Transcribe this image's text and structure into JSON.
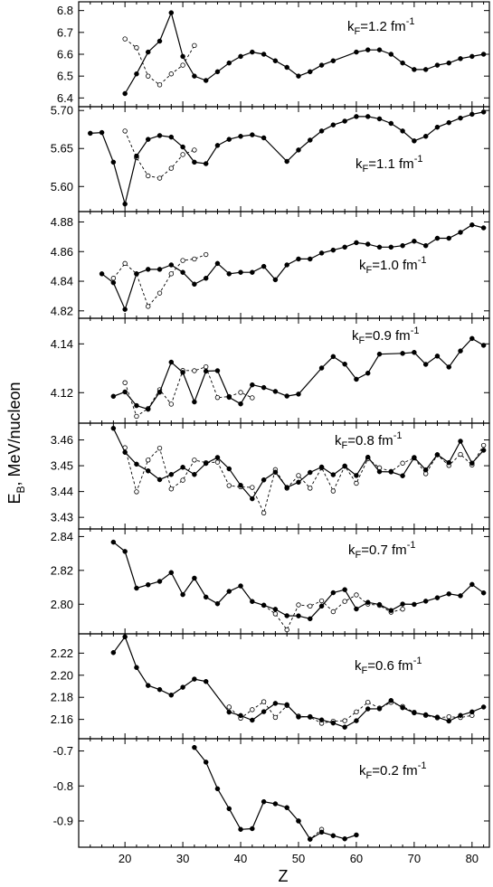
{
  "figure": {
    "ylabel_main": "E",
    "ylabel_sub": "B",
    "ylabel_rest": ", MeV/nucleon",
    "xlabel": "Z"
  },
  "chart_data": [
    {
      "type": "line",
      "label_pre": "k",
      "label_sub": "F",
      "label_mid": "=1.2 fm",
      "label_sup": "-1",
      "xlim": [
        12,
        83
      ],
      "ylim": [
        6.36,
        6.84
      ],
      "yticks": [
        "6.4",
        "6.5",
        "6.6",
        "6.7",
        "6.8"
      ],
      "xticks": [],
      "series": [
        {
          "style": "solid-filled",
          "x": [
            20,
            22,
            24,
            26,
            28,
            30,
            32,
            34,
            36,
            38,
            40,
            42,
            44,
            46,
            48,
            50,
            52,
            54,
            56,
            60,
            62,
            64,
            66,
            68,
            70,
            72,
            74,
            76,
            78,
            80,
            82
          ],
          "y": [
            6.42,
            6.51,
            6.61,
            6.66,
            6.79,
            6.59,
            6.5,
            6.48,
            6.52,
            6.56,
            6.59,
            6.61,
            6.6,
            6.57,
            6.54,
            6.5,
            6.52,
            6.55,
            6.57,
            6.61,
            6.62,
            6.62,
            6.6,
            6.56,
            6.53,
            6.53,
            6.55,
            6.56,
            6.58,
            6.59,
            6.6
          ]
        },
        {
          "style": "dashed-open",
          "x": [
            20,
            22,
            24,
            26,
            28,
            30,
            32
          ],
          "y": [
            6.67,
            6.63,
            6.5,
            6.46,
            6.51,
            6.55,
            6.64
          ]
        }
      ]
    },
    {
      "type": "line",
      "label_pre": "k",
      "label_sub": "F",
      "label_mid": "=1.1 fm",
      "label_sup": "-1",
      "xlim": [
        12,
        83
      ],
      "ylim": [
        5.567,
        5.705
      ],
      "yticks": [
        "5.60",
        "5.65",
        "5.70"
      ],
      "xticks": [],
      "series": [
        {
          "style": "solid-filled",
          "x": [
            14,
            16,
            18,
            20,
            22,
            24,
            26,
            28,
            30,
            32,
            34,
            36,
            38,
            40,
            42,
            44,
            48,
            50,
            52,
            54,
            56,
            58,
            60,
            62,
            64,
            66,
            68,
            70,
            72,
            74,
            76,
            78,
            80,
            82
          ],
          "y": [
            5.67,
            5.671,
            5.632,
            5.577,
            5.64,
            5.662,
            5.667,
            5.665,
            5.652,
            5.632,
            5.63,
            5.654,
            5.662,
            5.666,
            5.668,
            5.664,
            5.633,
            5.648,
            5.661,
            5.673,
            5.681,
            5.686,
            5.692,
            5.692,
            5.689,
            5.683,
            5.673,
            5.66,
            5.666,
            5.678,
            5.684,
            5.69,
            5.695,
            5.698
          ]
        },
        {
          "style": "dashed-open",
          "x": [
            20,
            22,
            24,
            26,
            28,
            30,
            32
          ],
          "y": [
            5.673,
            5.638,
            5.614,
            5.611,
            5.624,
            5.642,
            5.648
          ]
        }
      ]
    },
    {
      "type": "line",
      "label_pre": "k",
      "label_sub": "F",
      "label_mid": "=1.0 fm",
      "label_sup": "-1",
      "xlim": [
        12,
        83
      ],
      "ylim": [
        4.815,
        4.887
      ],
      "yticks": [
        "4.82",
        "4.84",
        "4.86",
        "4.88"
      ],
      "xticks": [],
      "series": [
        {
          "style": "solid-filled",
          "x": [
            16,
            18,
            20,
            22,
            24,
            26,
            28,
            30,
            32,
            34,
            36,
            38,
            40,
            42,
            44,
            46,
            48,
            50,
            52,
            54,
            56,
            58,
            60,
            62,
            64,
            66,
            68,
            70,
            72,
            74,
            76,
            78,
            80,
            82
          ],
          "y": [
            4.845,
            4.839,
            4.821,
            4.845,
            4.848,
            4.848,
            4.851,
            4.846,
            4.838,
            4.842,
            4.852,
            4.845,
            4.846,
            4.846,
            4.85,
            4.841,
            4.851,
            4.855,
            4.855,
            4.859,
            4.861,
            4.863,
            4.866,
            4.865,
            4.863,
            4.863,
            4.864,
            4.867,
            4.864,
            4.869,
            4.869,
            4.873,
            4.878,
            4.876
          ]
        },
        {
          "style": "dashed-open",
          "x": [
            18,
            20,
            22,
            24,
            26,
            28,
            30,
            32,
            34
          ],
          "y": [
            4.842,
            4.852,
            4.845,
            4.823,
            4.832,
            4.845,
            4.854,
            4.855,
            4.858
          ]
        }
      ]
    },
    {
      "type": "line",
      "label_pre": "k",
      "label_sub": "F",
      "label_mid": "=0.9 fm",
      "label_sup": "-1",
      "xlim": [
        12,
        83
      ],
      "ylim": [
        4.1075,
        4.1505
      ],
      "yticks": [
        "4.12",
        "4.14"
      ],
      "xticks": [],
      "series": [
        {
          "style": "solid-filled",
          "x": [
            18,
            20,
            22,
            24,
            26,
            28,
            30,
            32,
            34,
            36,
            38,
            40,
            42,
            44,
            46,
            48,
            50,
            54,
            56,
            58,
            60,
            62,
            64,
            68,
            70,
            72,
            74,
            76,
            78,
            80,
            82
          ],
          "y": [
            4.1185,
            4.1203,
            4.1147,
            4.1132,
            4.1202,
            4.1325,
            4.1283,
            4.1162,
            4.1288,
            4.129,
            4.1181,
            4.1154,
            4.1232,
            4.1221,
            4.1205,
            4.1186,
            4.1194,
            4.1301,
            4.1348,
            4.1317,
            4.1255,
            4.128,
            4.1358,
            4.1361,
            4.1365,
            4.1316,
            4.135,
            4.1305,
            4.1371,
            4.1422,
            4.1394
          ]
        },
        {
          "style": "dashed-open",
          "x": [
            20,
            22,
            24,
            26,
            28,
            30,
            32,
            34,
            36,
            38,
            40,
            42
          ],
          "y": [
            4.1241,
            4.1103,
            4.1135,
            4.1212,
            4.1153,
            4.1291,
            4.129,
            4.1306,
            4.118,
            4.1184,
            4.1201,
            4.1179
          ]
        }
      ]
    },
    {
      "type": "line",
      "label_pre": "k",
      "label_sub": "F",
      "label_mid": "=0.8 fm",
      "label_sup": "-1",
      "xlim": [
        12,
        83
      ],
      "ylim": [
        3.4255,
        3.4665
      ],
      "yticks": [
        "3.43",
        "3.44",
        "3.45",
        "3.46"
      ],
      "xticks": [],
      "series": [
        {
          "style": "solid-filled",
          "x": [
            18,
            20,
            22,
            24,
            26,
            28,
            30,
            32,
            34,
            36,
            38,
            40,
            42,
            44,
            46,
            48,
            50,
            52,
            54,
            56,
            58,
            60,
            62,
            64,
            66,
            68,
            70,
            72,
            74,
            76,
            78,
            80,
            82
          ],
          "y": [
            3.4645,
            3.4552,
            3.4506,
            3.448,
            3.4446,
            3.4466,
            3.4494,
            3.4466,
            3.4509,
            3.4532,
            3.4488,
            3.4424,
            3.4372,
            3.4445,
            3.4475,
            3.4416,
            3.4436,
            3.4474,
            3.4495,
            3.4465,
            3.4498,
            3.4462,
            3.4533,
            3.4477,
            3.4476,
            3.4461,
            3.4532,
            3.4484,
            3.4543,
            3.4512,
            3.4595,
            3.451,
            3.456
          ]
        },
        {
          "style": "dashed-open",
          "x": [
            20,
            22,
            24,
            26,
            28,
            30,
            32,
            34,
            36,
            38,
            40,
            42,
            44,
            46,
            48,
            50,
            52,
            54,
            56,
            58,
            60,
            62,
            64,
            66,
            68,
            70,
            72,
            74,
            76,
            78,
            80,
            82
          ],
          "y": [
            3.457,
            3.4399,
            3.4522,
            3.4568,
            3.441,
            3.4444,
            3.4522,
            3.4512,
            3.4514,
            3.4423,
            3.4418,
            3.4416,
            3.4317,
            3.4485,
            3.4413,
            3.4462,
            3.4413,
            3.4492,
            3.4402,
            3.4499,
            3.4432,
            3.4527,
            3.4492,
            3.4478,
            3.451,
            3.453,
            3.4469,
            3.4542,
            3.4501,
            3.4544,
            3.4503,
            3.4579
          ]
        }
      ]
    },
    {
      "type": "line",
      "label_pre": "k",
      "label_sub": "F",
      "label_mid": "=0.7 fm",
      "label_sup": "-1",
      "xlim": [
        12,
        83
      ],
      "ylim": [
        2.7825,
        2.8445
      ],
      "yticks": [
        "2.80",
        "2.82",
        "2.84"
      ],
      "xticks": [],
      "series": [
        {
          "style": "solid-filled",
          "x": [
            18,
            20,
            22,
            24,
            26,
            28,
            30,
            32,
            34,
            36,
            38,
            40,
            42,
            44,
            46,
            48,
            50,
            52,
            54,
            56,
            58,
            60,
            62,
            64,
            66,
            68,
            70,
            72,
            74,
            76,
            78,
            80,
            82
          ],
          "y": [
            2.8367,
            2.8312,
            2.8095,
            2.8115,
            2.8135,
            2.8187,
            2.8057,
            2.8154,
            2.8042,
            2.8003,
            2.8076,
            2.8108,
            2.8016,
            2.7994,
            2.797,
            2.7932,
            2.7931,
            2.7914,
            2.7989,
            2.8068,
            2.8086,
            2.7972,
            2.8011,
            2.7998,
            2.7963,
            2.8001,
            2.7999,
            2.8018,
            2.8038,
            2.8061,
            2.805,
            2.8117,
            2.8067
          ]
        },
        {
          "style": "dashed-open",
          "x": [
            44,
            46,
            48,
            50,
            52,
            54,
            56,
            58,
            60,
            62,
            64,
            66,
            68
          ],
          "y": [
            2.7994,
            2.7943,
            2.7849,
            2.7996,
            2.7989,
            2.802,
            2.7956,
            2.8017,
            2.8055,
            2.8001,
            2.7993,
            2.7953,
            2.7971
          ]
        }
      ]
    },
    {
      "type": "line",
      "label_pre": "k",
      "label_sub": "F",
      "label_mid": "=0.6 fm",
      "label_sup": "-1",
      "xlim": [
        12,
        83
      ],
      "ylim": [
        2.1425,
        2.2375
      ],
      "yticks": [
        "2.16",
        "2.18",
        "2.20",
        "2.22"
      ],
      "xticks": [],
      "series": [
        {
          "style": "solid-filled",
          "x": [
            18,
            20,
            22,
            24,
            26,
            28,
            30,
            32,
            34,
            38,
            40,
            42,
            44,
            46,
            48,
            50,
            52,
            54,
            56,
            58,
            60,
            62,
            64,
            66,
            68,
            70,
            72,
            74,
            76,
            78,
            80,
            82
          ],
          "y": [
            2.2205,
            2.2348,
            2.207,
            2.1907,
            2.187,
            2.182,
            2.1891,
            2.1965,
            2.1943,
            2.1666,
            2.1635,
            2.1593,
            2.167,
            2.1745,
            2.1733,
            2.1622,
            2.1625,
            2.1595,
            2.1567,
            2.153,
            2.1588,
            2.1695,
            2.1696,
            2.1771,
            2.1706,
            2.1659,
            2.1642,
            2.162,
            2.1585,
            2.1636,
            2.1668,
            2.1712
          ]
        },
        {
          "style": "dashed-open",
          "x": [
            38,
            40,
            42,
            44,
            46,
            48,
            50,
            52,
            54,
            56,
            58,
            60,
            62,
            64,
            66,
            68,
            70,
            72,
            74,
            76,
            78,
            80
          ],
          "y": [
            2.1712,
            2.1611,
            2.1688,
            2.176,
            2.1618,
            2.1725,
            2.163,
            2.1621,
            2.1565,
            2.1583,
            2.1588,
            2.1668,
            2.1755,
            2.1703,
            2.1754,
            2.1717,
            2.1665,
            2.1636,
            2.1614,
            2.1624,
            2.1617,
            2.1636
          ]
        }
      ]
    },
    {
      "type": "line",
      "label_pre": "k",
      "label_sub": "F",
      "label_mid": "=0.2 fm",
      "label_sup": "-1",
      "xlim": [
        12,
        83
      ],
      "ylim": [
        -0.975,
        -0.665
      ],
      "yticks": [
        "-0.9",
        "-0.8",
        "-0.7"
      ],
      "xticks": [
        "20",
        "30",
        "40",
        "50",
        "60",
        "70",
        "80"
      ],
      "series": [
        {
          "style": "solid-filled",
          "x": [
            32,
            34,
            36,
            38,
            40,
            42,
            44,
            46,
            48,
            50,
            52,
            54,
            56,
            58,
            60
          ],
          "y": [
            -0.69,
            -0.732,
            -0.808,
            -0.865,
            -0.924,
            -0.922,
            -0.845,
            -0.851,
            -0.862,
            -0.9,
            -0.952,
            -0.932,
            -0.942,
            -0.951,
            -0.94
          ]
        },
        {
          "style": "dashed-open",
          "x": [
            50,
            52,
            54
          ],
          "y": [
            -0.9,
            -0.952,
            -0.924
          ]
        }
      ]
    }
  ]
}
